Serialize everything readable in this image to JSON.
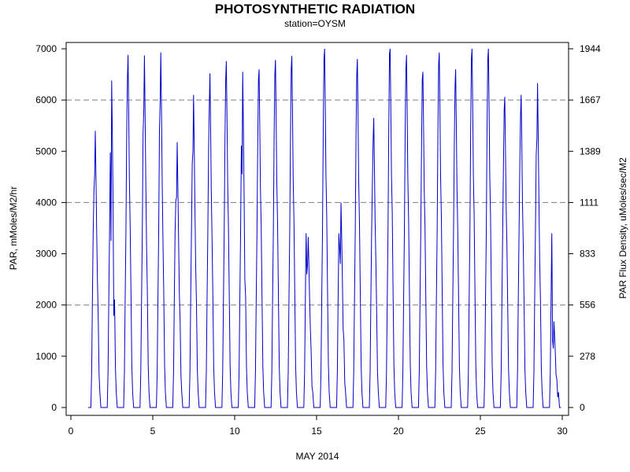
{
  "chart_data": {
    "type": "line",
    "title": "PHOTOSYNTHETIC RADIATION",
    "subtitle": "station=OYSM",
    "xlabel": "MAY 2014",
    "ylabel": "PAR, mMoles/M2/hr",
    "ylabel_right": "PAR Flux Density, uMoles/sec/M2",
    "xlim": [
      0,
      30
    ],
    "ylim": [
      0,
      7000
    ],
    "x_ticks": [
      0,
      5,
      10,
      15,
      20,
      25,
      30
    ],
    "y_ticks": [
      0,
      1000,
      2000,
      3000,
      4000,
      5000,
      6000,
      7000
    ],
    "y_right_ticks": [
      "0",
      "278",
      "556",
      "833",
      "1111",
      "1389",
      "1667",
      "1944"
    ],
    "grid_y_values": [
      2000,
      4000,
      6000
    ],
    "grid": true,
    "legend": "none",
    "series_color": "#0000c8",
    "daily_peaks": [
      {
        "day": 1,
        "peak": 5400,
        "secondary": 4550
      },
      {
        "day": 2,
        "peak": 6380,
        "secondary": 3250
      },
      {
        "day": 3,
        "peak": 6880,
        "secondary": 6400
      },
      {
        "day": 4,
        "peak": 6870,
        "secondary": 5800
      },
      {
        "day": 5,
        "peak": 6930,
        "secondary": 6000
      },
      {
        "day": 6,
        "peak": 5180,
        "secondary": 4100
      },
      {
        "day": 7,
        "peak": 6100,
        "secondary": 5000
      },
      {
        "day": 8,
        "peak": 6520,
        "secondary": 5900
      },
      {
        "day": 9,
        "peak": 6760,
        "secondary": 6400
      },
      {
        "day": 10,
        "peak": 6550,
        "secondary": 4550
      },
      {
        "day": 11,
        "peak": 6600,
        "secondary": 6400
      },
      {
        "day": 12,
        "peak": 6780,
        "secondary": 6500
      },
      {
        "day": 13,
        "peak": 6860,
        "secondary": 6600
      },
      {
        "day": 14,
        "peak": 3330,
        "secondary": 2800
      },
      {
        "day": 15,
        "peak": 7000,
        "secondary": 6800
      },
      {
        "day": 16,
        "peak": 4000,
        "secondary": 2800
      },
      {
        "day": 17,
        "peak": 6800,
        "secondary": 6500
      },
      {
        "day": 18,
        "peak": 5650,
        "secondary": 5200
      },
      {
        "day": 19,
        "peak": 7000,
        "secondary": 6900
      },
      {
        "day": 20,
        "peak": 6880,
        "secondary": 6600
      },
      {
        "day": 21,
        "peak": 6550,
        "secondary": 6400
      },
      {
        "day": 22,
        "peak": 6930,
        "secondary": 6700
      },
      {
        "day": 23,
        "peak": 6600,
        "secondary": 6250
      },
      {
        "day": 24,
        "peak": 7000,
        "secondary": 6800
      },
      {
        "day": 25,
        "peak": 7000,
        "secondary": 6800
      },
      {
        "day": 26,
        "peak": 6060,
        "secondary": 5800
      },
      {
        "day": 27,
        "peak": 6100,
        "secondary": 5700
      },
      {
        "day": 28,
        "peak": 6330,
        "secondary": 5250
      },
      {
        "day": 29,
        "peak": 1680,
        "secondary": 1150
      }
    ]
  }
}
